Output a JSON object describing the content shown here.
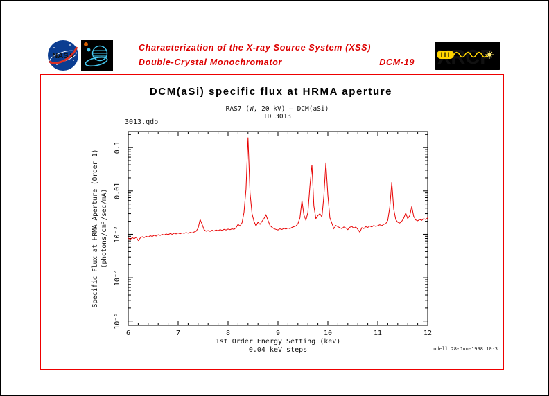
{
  "header": {
    "line1": "Characterization of the X-ray Source System (XSS)",
    "line2": "Double-Crystal Monochromator",
    "doc_id": "DCM-19",
    "nasa_logo_text": "NASA",
    "xrcf_logo_text": "XRCF"
  },
  "figure": {
    "title": "DCM(aSi) specific flux at HRMA aperture",
    "file_label": "3013.qdp",
    "credit": "odell 28-Jun-1998 10:3"
  },
  "colors": {
    "accent_red": "#dd0000",
    "box_border_red": "#ee0000",
    "curve_red": "#e80000",
    "nasa_blue": "#0b3d91",
    "mission_logo_cyan": "#45c8f0",
    "xrcf_letters_red": "#c81e28",
    "xrcf_yellow": "#ffd400"
  },
  "chart_data": {
    "type": "line",
    "title": "RAS7 (W, 20 kV) – DCM(aSi)",
    "subtitle": "ID 3013",
    "xlabel": "1st Order Energy Setting (keV)",
    "xlabel_sub": "0.04 keV steps",
    "ylabel": "Specific Flux at HRMA Aperture (Order 1)",
    "ylabel_units": "(photons/cm²/sec/mA)",
    "series_name": "DCM(aSi) specific flux at HRMA aperture",
    "axes": "log-y",
    "grid": false,
    "legend_position": "none",
    "xlim": [
      6,
      12
    ],
    "x_major_ticks": [
      6,
      7,
      8,
      9,
      10,
      11,
      12
    ],
    "x_minor_step": 0.2,
    "ylim_log10": [
      -5.1,
      -0.63
    ],
    "y_tick_values": [
      0.1,
      0.01,
      0.001,
      0.0001,
      1e-05
    ],
    "y_tick_labels": [
      "0.1",
      "0.01",
      "10⁻³",
      "10⁻⁴",
      "10⁻⁵"
    ],
    "line_color": "#e80000",
    "points": [
      [
        6.0,
        0.00082
      ],
      [
        6.04,
        0.00076
      ],
      [
        6.08,
        0.00084
      ],
      [
        6.12,
        0.00079
      ],
      [
        6.16,
        0.00086
      ],
      [
        6.2,
        0.00072
      ],
      [
        6.24,
        0.00082
      ],
      [
        6.28,
        0.00088
      ],
      [
        6.32,
        0.00084
      ],
      [
        6.36,
        0.0009
      ],
      [
        6.4,
        0.00086
      ],
      [
        6.44,
        0.00093
      ],
      [
        6.48,
        0.00089
      ],
      [
        6.52,
        0.00095
      ],
      [
        6.56,
        0.00091
      ],
      [
        6.6,
        0.00098
      ],
      [
        6.64,
        0.00094
      ],
      [
        6.68,
        0.001
      ],
      [
        6.72,
        0.00096
      ],
      [
        6.76,
        0.00102
      ],
      [
        6.8,
        0.00098
      ],
      [
        6.84,
        0.00104
      ],
      [
        6.88,
        0.001
      ],
      [
        6.92,
        0.00106
      ],
      [
        6.96,
        0.00102
      ],
      [
        7.0,
        0.00107
      ],
      [
        7.04,
        0.00103
      ],
      [
        7.08,
        0.00108
      ],
      [
        7.12,
        0.00105
      ],
      [
        7.16,
        0.0011
      ],
      [
        7.2,
        0.00106
      ],
      [
        7.24,
        0.00111
      ],
      [
        7.28,
        0.00108
      ],
      [
        7.32,
        0.00113
      ],
      [
        7.36,
        0.00118
      ],
      [
        7.4,
        0.00138
      ],
      [
        7.44,
        0.0022
      ],
      [
        7.48,
        0.0017
      ],
      [
        7.52,
        0.00128
      ],
      [
        7.56,
        0.00118
      ],
      [
        7.6,
        0.00122
      ],
      [
        7.64,
        0.00117
      ],
      [
        7.68,
        0.00124
      ],
      [
        7.72,
        0.00119
      ],
      [
        7.76,
        0.00126
      ],
      [
        7.8,
        0.00121
      ],
      [
        7.84,
        0.00128
      ],
      [
        7.88,
        0.00123
      ],
      [
        7.92,
        0.0013
      ],
      [
        7.96,
        0.00126
      ],
      [
        8.0,
        0.00132
      ],
      [
        8.04,
        0.00128
      ],
      [
        8.08,
        0.00134
      ],
      [
        8.12,
        0.0013
      ],
      [
        8.16,
        0.00142
      ],
      [
        8.2,
        0.0017
      ],
      [
        8.24,
        0.00155
      ],
      [
        8.28,
        0.00185
      ],
      [
        8.32,
        0.0032
      ],
      [
        8.36,
        0.011
      ],
      [
        8.4,
        0.17
      ],
      [
        8.44,
        0.009
      ],
      [
        8.48,
        0.003
      ],
      [
        8.52,
        0.002
      ],
      [
        8.56,
        0.00155
      ],
      [
        8.6,
        0.0019
      ],
      [
        8.64,
        0.0017
      ],
      [
        8.68,
        0.002
      ],
      [
        8.72,
        0.0023
      ],
      [
        8.76,
        0.0028
      ],
      [
        8.8,
        0.0021
      ],
      [
        8.84,
        0.0016
      ],
      [
        8.88,
        0.00145
      ],
      [
        8.92,
        0.00135
      ],
      [
        8.96,
        0.0013
      ],
      [
        9.0,
        0.00126
      ],
      [
        9.04,
        0.00134
      ],
      [
        9.08,
        0.00129
      ],
      [
        9.12,
        0.00138
      ],
      [
        9.16,
        0.00132
      ],
      [
        9.2,
        0.0014
      ],
      [
        9.24,
        0.00135
      ],
      [
        9.28,
        0.00144
      ],
      [
        9.32,
        0.0015
      ],
      [
        9.36,
        0.00156
      ],
      [
        9.4,
        0.00175
      ],
      [
        9.44,
        0.0024
      ],
      [
        9.48,
        0.006
      ],
      [
        9.52,
        0.0028
      ],
      [
        9.56,
        0.0021
      ],
      [
        9.6,
        0.0032
      ],
      [
        9.64,
        0.013
      ],
      [
        9.68,
        0.04
      ],
      [
        9.72,
        0.0045
      ],
      [
        9.76,
        0.0023
      ],
      [
        9.8,
        0.0027
      ],
      [
        9.84,
        0.003
      ],
      [
        9.88,
        0.0025
      ],
      [
        9.92,
        0.0075
      ],
      [
        9.96,
        0.045
      ],
      [
        10.0,
        0.008
      ],
      [
        10.04,
        0.0024
      ],
      [
        10.08,
        0.0018
      ],
      [
        10.12,
        0.00135
      ],
      [
        10.16,
        0.0016
      ],
      [
        10.2,
        0.0015
      ],
      [
        10.24,
        0.00142
      ],
      [
        10.28,
        0.00135
      ],
      [
        10.32,
        0.00148
      ],
      [
        10.36,
        0.0014
      ],
      [
        10.4,
        0.00128
      ],
      [
        10.44,
        0.00145
      ],
      [
        10.48,
        0.00152
      ],
      [
        10.52,
        0.00138
      ],
      [
        10.56,
        0.00148
      ],
      [
        10.6,
        0.0013
      ],
      [
        10.64,
        0.00112
      ],
      [
        10.68,
        0.00142
      ],
      [
        10.72,
        0.00136
      ],
      [
        10.76,
        0.0015
      ],
      [
        10.8,
        0.00144
      ],
      [
        10.84,
        0.00155
      ],
      [
        10.88,
        0.00148
      ],
      [
        10.92,
        0.0016
      ],
      [
        10.96,
        0.00152
      ],
      [
        11.0,
        0.00158
      ],
      [
        11.04,
        0.00166
      ],
      [
        11.08,
        0.00158
      ],
      [
        11.12,
        0.0017
      ],
      [
        11.16,
        0.00176
      ],
      [
        11.2,
        0.0021
      ],
      [
        11.24,
        0.0042
      ],
      [
        11.28,
        0.016
      ],
      [
        11.32,
        0.0038
      ],
      [
        11.36,
        0.0022
      ],
      [
        11.4,
        0.0019
      ],
      [
        11.44,
        0.00182
      ],
      [
        11.48,
        0.002
      ],
      [
        11.52,
        0.00235
      ],
      [
        11.56,
        0.0031
      ],
      [
        11.6,
        0.0023
      ],
      [
        11.64,
        0.0027
      ],
      [
        11.68,
        0.0044
      ],
      [
        11.72,
        0.0026
      ],
      [
        11.76,
        0.00215
      ],
      [
        11.8,
        0.00205
      ],
      [
        11.84,
        0.0022
      ],
      [
        11.88,
        0.0021
      ],
      [
        11.92,
        0.0023
      ],
      [
        11.96,
        0.0022
      ],
      [
        12.0,
        0.0024
      ]
    ]
  }
}
